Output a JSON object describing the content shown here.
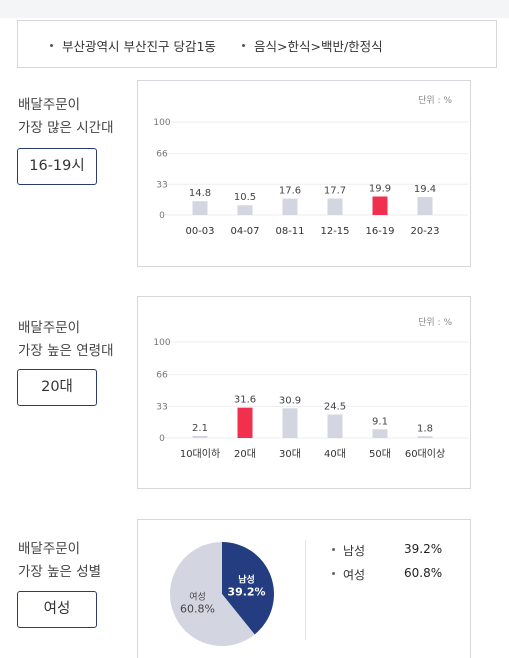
{
  "filter": {
    "region": "부산광역시 부산진구 당감1동",
    "category": "음식>한식>백반/한정식"
  },
  "sections": {
    "time": {
      "label_line1": "배달주문이",
      "label_line2": "가장 많은 시간대",
      "value": "16-19시",
      "unit": "단위 : %"
    },
    "age": {
      "label_line1": "배달주문이",
      "label_line2": "가장 높은 연령대",
      "value": "20대",
      "unit": "단위 : %"
    },
    "gender": {
      "label_line1": "배달주문이",
      "label_line2": "가장 높은 성별",
      "value": "여성"
    }
  },
  "colors": {
    "bar_default": "#d3d6e1",
    "bar_highlight": "#f0304d",
    "pie_male": "#243c80",
    "pie_female": "#d3d6e1",
    "button_border": "#2a3d72"
  },
  "chart_data": [
    {
      "type": "bar",
      "categories": [
        "00-03",
        "04-07",
        "08-11",
        "12-15",
        "16-19",
        "20-23"
      ],
      "values": [
        14.8,
        10.5,
        17.6,
        17.7,
        19.9,
        19.4
      ],
      "highlight_index": 4,
      "y_ticks": [
        0,
        33,
        66,
        100
      ],
      "ylim": [
        0,
        100
      ]
    },
    {
      "type": "bar",
      "categories": [
        "10대이하",
        "20대",
        "30대",
        "40대",
        "50대",
        "60대이상"
      ],
      "values": [
        2.1,
        31.6,
        30.9,
        24.5,
        9.1,
        1.8
      ],
      "highlight_index": 1,
      "y_ticks": [
        0,
        33,
        66,
        100
      ],
      "ylim": [
        0,
        100
      ]
    },
    {
      "type": "pie",
      "categories": [
        "남성",
        "여성"
      ],
      "values": [
        39.2,
        60.8
      ],
      "labels": [
        "39.2%",
        "60.8%"
      ]
    }
  ]
}
